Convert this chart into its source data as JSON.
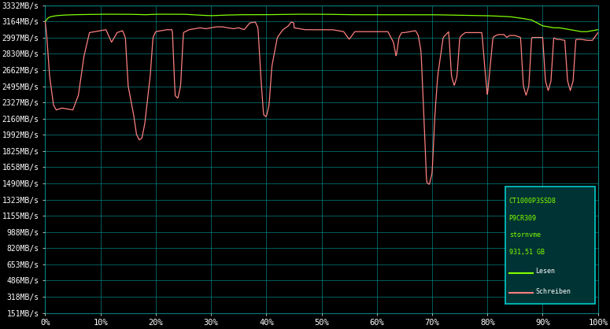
{
  "background_color": "#000000",
  "plot_bg_color": "#000000",
  "grid_color": "#008080",
  "text_color": "#ffffff",
  "ytick_labels": [
    "151MB/s",
    "318MB/s",
    "486MB/s",
    "653MB/s",
    "820MB/s",
    "988MB/s",
    "1155MB/s",
    "1323MB/s",
    "1490MB/s",
    "1658MB/s",
    "1825MB/s",
    "1992MB/s",
    "2160MB/s",
    "2327MB/s",
    "2495MB/s",
    "2662MB/s",
    "2830MB/s",
    "2997MB/s",
    "3164MB/s",
    "3332MB/s"
  ],
  "ytick_values": [
    151,
    318,
    486,
    653,
    820,
    988,
    1155,
    1323,
    1490,
    1658,
    1825,
    1992,
    2160,
    2327,
    2495,
    2662,
    2830,
    2997,
    3164,
    3332
  ],
  "xtick_labels": [
    "0%",
    "10%",
    "20%",
    "30%",
    "40%",
    "50%",
    "60%",
    "70%",
    "80%",
    "90%",
    "100%"
  ],
  "xtick_values": [
    0,
    10,
    20,
    30,
    40,
    50,
    60,
    70,
    80,
    90,
    100
  ],
  "legend_text": [
    "CT1000P3SSD8",
    "P9CR309",
    "stornvme",
    "931,51 GB"
  ],
  "legend_lesen": "Lesen",
  "legend_schreiben": "Schreiben",
  "green_color": "#80ff00",
  "red_color": "#ff8080",
  "legend_box_color": "#003333",
  "legend_border_color": "#00cccc",
  "ymin": 151,
  "ymax": 3332,
  "xmin": 0,
  "xmax": 100
}
